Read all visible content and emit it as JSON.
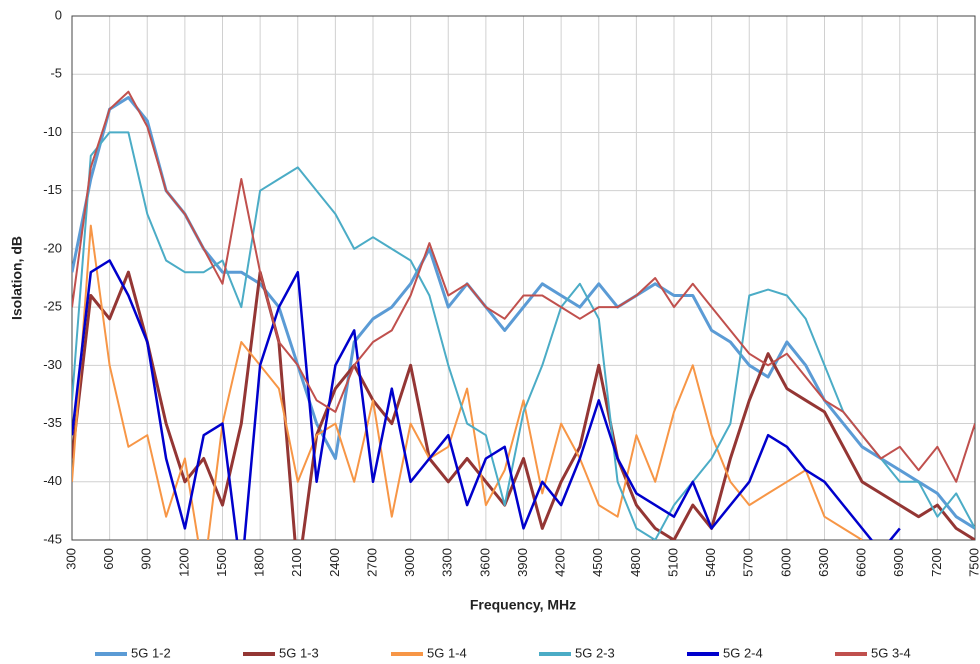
{
  "chart_data": {
    "type": "line",
    "x_label": "Frequency, MHz",
    "y_label": "Isolation, dB",
    "x": [
      300,
      450,
      600,
      750,
      900,
      1050,
      1200,
      1350,
      1500,
      1650,
      1800,
      1950,
      2100,
      2250,
      2400,
      2550,
      2700,
      2850,
      3000,
      3150,
      3300,
      3450,
      3600,
      3750,
      3900,
      4050,
      4200,
      4350,
      4500,
      4650,
      4800,
      4950,
      5100,
      5250,
      5400,
      5550,
      5700,
      5850,
      6000,
      6150,
      6300,
      6450,
      6600,
      6750,
      6900,
      7050,
      7200,
      7350,
      7500
    ],
    "xlim": [
      300,
      7500
    ],
    "xticks": [
      300,
      600,
      900,
      1200,
      1500,
      1800,
      2100,
      2400,
      2700,
      3000,
      3300,
      3600,
      3900,
      4200,
      4500,
      4800,
      5100,
      5400,
      5700,
      6000,
      6300,
      6600,
      6900,
      7200,
      7500
    ],
    "ylim": [
      -45,
      0
    ],
    "yticks": [
      0,
      -5,
      -10,
      -15,
      -20,
      -25,
      -30,
      -35,
      -40,
      -45
    ],
    "grid": true,
    "legend": "bottom",
    "series": [
      {
        "name": "5G 1-2",
        "color": "#5b9bd5",
        "width": 3,
        "values": [
          -22,
          -14,
          -8,
          -7,
          -9,
          -15,
          -17,
          -20,
          -22,
          -22,
          -23,
          -25,
          -30,
          -35,
          -38,
          -28,
          -26,
          -25,
          -23,
          -20,
          -25,
          -23,
          -25,
          -27,
          -25,
          -23,
          -24,
          -25,
          -23,
          -25,
          -24,
          -23,
          -24,
          -24,
          -27,
          -28,
          -30,
          -31,
          -28,
          -30,
          -33,
          -35,
          -37,
          -38,
          -39,
          -40,
          -41,
          -43,
          -44
        ]
      },
      {
        "name": "5G 1-3",
        "color": "#943634",
        "width": 3,
        "values": [
          -38,
          -24,
          -26,
          -22,
          -28,
          -35,
          -40,
          -38,
          -42,
          -35,
          -22,
          -28,
          -48,
          -36,
          -32,
          -30,
          -33,
          -35,
          -30,
          -38,
          -40,
          -38,
          -40,
          -42,
          -38,
          -44,
          -40,
          -37,
          -30,
          -38,
          -42,
          -44,
          -45,
          -42,
          -44,
          -38,
          -33,
          -29,
          -32,
          -33,
          -34,
          -37,
          -40,
          -41,
          -42,
          -43,
          -42,
          -44,
          -45
        ]
      },
      {
        "name": "5G 1-4",
        "color": "#f79646",
        "width": 2,
        "values": [
          -40,
          -18,
          -30,
          -37,
          -36,
          -43,
          -38,
          -48,
          -35,
          -28,
          -30,
          -32,
          -40,
          -36,
          -35,
          -40,
          -33,
          -43,
          -35,
          -38,
          -37,
          -32,
          -42,
          -39,
          -33,
          -41,
          -35,
          -38,
          -42,
          -43,
          -36,
          -40,
          -34,
          -30,
          -36,
          -40,
          -42,
          -41,
          -40,
          -39,
          -43,
          -44,
          -45,
          null,
          null,
          null,
          null,
          null,
          null
        ]
      },
      {
        "name": "5G 2-3",
        "color": "#4bacc6",
        "width": 2,
        "values": [
          -33,
          -12,
          -10,
          -10,
          -17,
          -21,
          -22,
          -22,
          -21,
          -25,
          -15,
          -14,
          -13,
          -15,
          -17,
          -20,
          -19,
          -20,
          -21,
          -24,
          -30,
          -35,
          -36,
          -42,
          -34,
          -30,
          -25,
          -23,
          -26,
          -40,
          -44,
          -45,
          -42,
          -40,
          -38,
          -35,
          -24,
          -23.5,
          -24,
          -26,
          -30,
          -34,
          -36,
          -38,
          -40,
          -40,
          -43,
          -41,
          -44
        ]
      },
      {
        "name": "5G 2-4",
        "color": "#0000cc",
        "width": 2.5,
        "values": [
          -36,
          -22,
          -21,
          -24,
          -28,
          -38,
          -44,
          -36,
          -35,
          -48,
          -30,
          -25,
          -22,
          -40,
          -30,
          -27,
          -40,
          -32,
          -40,
          -38,
          -36,
          -42,
          -38,
          -37,
          -44,
          -40,
          -42,
          -38,
          -33,
          -38,
          -41,
          -42,
          -43,
          -40,
          -44,
          -42,
          -40,
          -36,
          -37,
          -39,
          -40,
          -42,
          -44,
          -46,
          -44,
          null,
          null,
          null,
          null
        ]
      },
      {
        "name": "5G 3-4",
        "color": "#c0504d",
        "width": 2,
        "values": [
          -25,
          -13,
          -8,
          -6.5,
          -9.5,
          -15,
          -17,
          -20,
          -23,
          -14,
          -22,
          -28,
          -30,
          -33,
          -34,
          -30,
          -28,
          -27,
          -24,
          -19.5,
          -24,
          -23,
          -25,
          -26,
          -24,
          -24,
          -25,
          -26,
          -25,
          -25,
          -24,
          -22.5,
          -25,
          -23,
          -25,
          -27,
          -29,
          -30,
          -29,
          -31,
          -33,
          -34,
          -36,
          -38,
          -37,
          -39,
          -37,
          -40,
          -35
        ]
      }
    ]
  }
}
